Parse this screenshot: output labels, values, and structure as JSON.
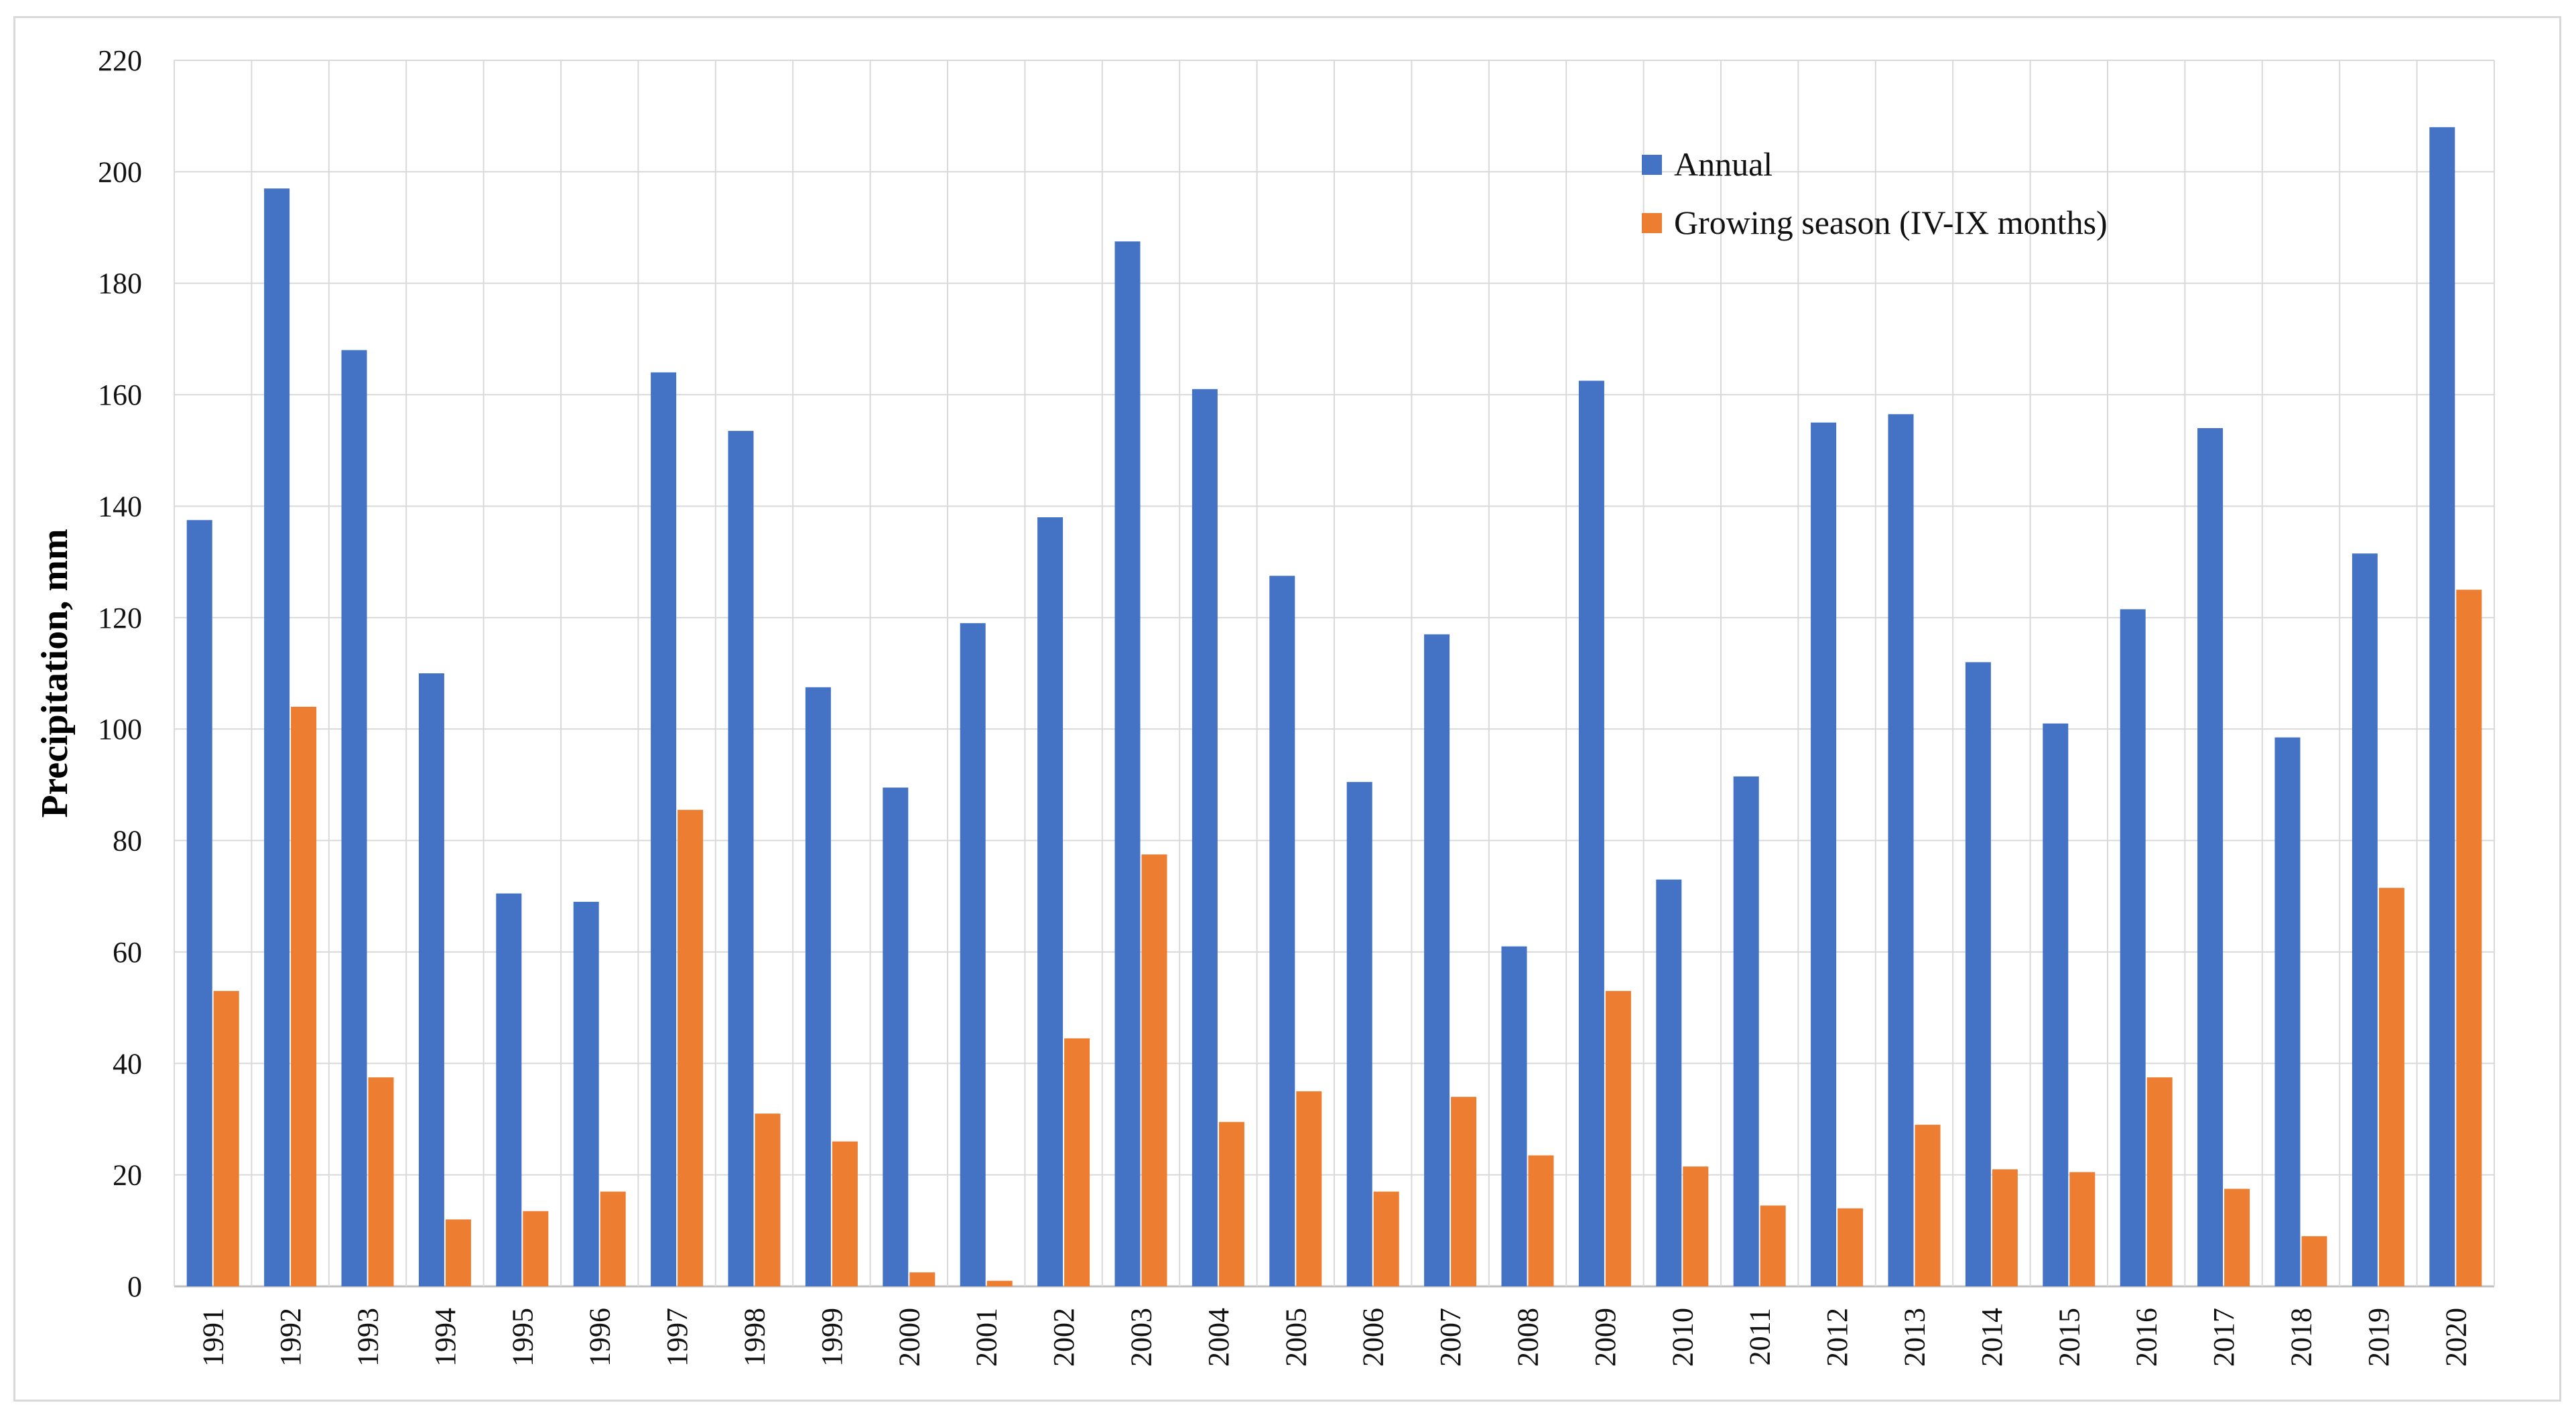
{
  "chart_data": {
    "type": "bar",
    "title": "",
    "xlabel": "",
    "ylabel": "Precipitation, mm",
    "ylim": [
      0,
      220
    ],
    "ytick_step": 20,
    "grid": true,
    "legend_position": "top-right",
    "categories": [
      "1991",
      "1992",
      "1993",
      "1994",
      "1995",
      "1996",
      "1997",
      "1998",
      "1999",
      "2000",
      "2001",
      "2002",
      "2003",
      "2004",
      "2005",
      "2006",
      "2007",
      "2008",
      "2009",
      "2010",
      "2011",
      "2012",
      "2013",
      "2014",
      "2015",
      "2016",
      "2017",
      "2018",
      "2019",
      "2020"
    ],
    "series": [
      {
        "name": "Annual",
        "color": "#4472C4",
        "values": [
          137.5,
          197,
          168,
          110,
          70.5,
          69,
          164,
          153.5,
          107.5,
          89.5,
          119,
          138,
          187.5,
          161,
          127.5,
          90.5,
          117,
          61,
          162.5,
          73,
          91.5,
          155,
          156.5,
          112,
          101,
          121.5,
          154,
          98.5,
          131.5,
          208
        ]
      },
      {
        "name": "Growing season (IV-IX months)",
        "color": "#ED7D31",
        "values": [
          53,
          104,
          37.5,
          12,
          13.5,
          17,
          85.5,
          31,
          26,
          2.5,
          1,
          44.5,
          77.5,
          29.5,
          35,
          17,
          34,
          23.5,
          53,
          21.5,
          14.5,
          14,
          29,
          21,
          20.5,
          37.5,
          17.5,
          9,
          71.5,
          125
        ]
      }
    ]
  }
}
